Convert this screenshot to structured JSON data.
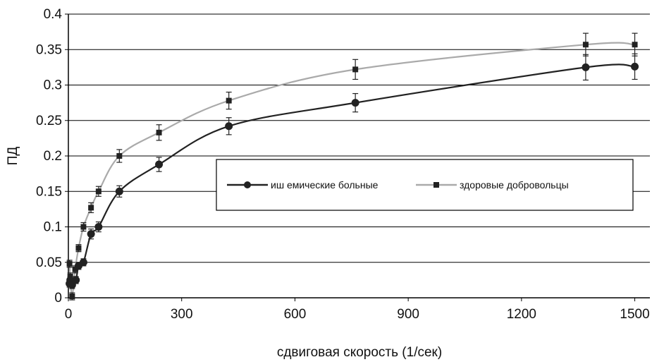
{
  "chart_data": {
    "type": "line",
    "xlabel": "сдвиговая скорость (1/сек)",
    "ylabel": "ПД",
    "xlim": [
      0,
      1540
    ],
    "ylim": [
      0,
      0.4
    ],
    "x_ticks": [
      "0",
      "300",
      "600",
      "900",
      "1200",
      "1500"
    ],
    "y_ticks": [
      "0",
      "0.05",
      "0.1",
      "0.15",
      "0.2",
      "0.25",
      "0.3",
      "0.35",
      "0.4"
    ],
    "grid": "horizontal",
    "legend_position": "center-right",
    "series": [
      {
        "name": "иш емические больные",
        "color": "#222222",
        "marker": "circle",
        "x": [
          3,
          5,
          10,
          20,
          27,
          40,
          60,
          80,
          135,
          240,
          425,
          760,
          1370,
          1500
        ],
        "y": [
          0.02,
          0.025,
          0.018,
          0.025,
          0.045,
          0.05,
          0.09,
          0.1,
          0.15,
          0.188,
          0.242,
          0.275,
          0.325,
          0.326
        ],
        "err": [
          0.005,
          0.005,
          0.005,
          0.005,
          0.005,
          0.005,
          0.007,
          0.007,
          0.008,
          0.01,
          0.012,
          0.013,
          0.018,
          0.018
        ]
      },
      {
        "name": "здоровые добровольцы",
        "color": "#aaaaaa",
        "marker": "square",
        "x": [
          3,
          5,
          10,
          18,
          27,
          40,
          60,
          80,
          135,
          240,
          425,
          760,
          1370,
          1500
        ],
        "y": [
          0.048,
          0.03,
          0.002,
          0.04,
          0.07,
          0.1,
          0.127,
          0.15,
          0.2,
          0.233,
          0.278,
          0.322,
          0.357,
          0.357
        ],
        "err": [
          0.005,
          0.005,
          0.005,
          0.005,
          0.005,
          0.006,
          0.007,
          0.007,
          0.009,
          0.011,
          0.012,
          0.014,
          0.016,
          0.016
        ]
      }
    ]
  }
}
